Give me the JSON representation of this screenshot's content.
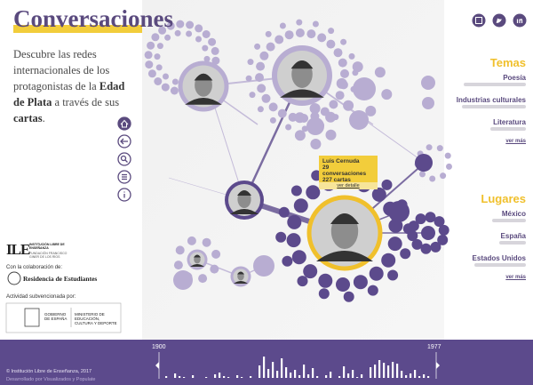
{
  "header": {
    "title": "Conversaciones",
    "description": [
      {
        "text": "Descubre las redes internacionales de los protagonistas de la ",
        "bold": false
      },
      {
        "text": "Edad de Plata",
        "bold": true
      },
      {
        "text": " a través de sus ",
        "bold": false
      },
      {
        "text": "cartas",
        "bold": true
      },
      {
        "text": ".",
        "bold": false
      }
    ]
  },
  "tooltip": {
    "name": "Luis Cernuda",
    "conversations": "29 conversaciones",
    "letters": "227 cartas",
    "link": "ver detalle"
  },
  "themes": {
    "title": "Temas",
    "items": [
      "Poesía",
      "Industrias culturales",
      "Literatura"
    ],
    "more": "ver más"
  },
  "places": {
    "title": "Lugares",
    "items": [
      "México",
      "España",
      "Estados Unidos"
    ],
    "more": "ver más"
  },
  "partners": {
    "ile_mark": "ILE",
    "ile_name": "INSTITUCIÓN LIBRE DE ENSEÑANZA",
    "ile_foundation": "FUNDACIÓN FRANCISCO GINER DE LOS RÍOS",
    "collaboration": "Con la colaboración de:",
    "residencia": "Residencia de Estudiantes",
    "funded": "Actividad subvencionada por:",
    "government": "GOBIERNO DE ESPAÑA",
    "ministry": "MINISTERIO DE EDUCACIÓN, CULTURA Y DEPORTE"
  },
  "footer": {
    "copyright": "© Institución Libre de Enseñanza, 2017",
    "credits": "Desarrollado por Visualizados y Populate",
    "timeline": {
      "start": "1900",
      "end": "1977",
      "counts": [
        2,
        0,
        5,
        2,
        1,
        0,
        3,
        0,
        0,
        1,
        0,
        4,
        6,
        2,
        1,
        0,
        3,
        1,
        0,
        2,
        0,
        14,
        24,
        10,
        18,
        8,
        22,
        12,
        6,
        9,
        3,
        15,
        4,
        11,
        2,
        0,
        3,
        7,
        0,
        2,
        13,
        5,
        9,
        1,
        4,
        0,
        12,
        15,
        20,
        17,
        14,
        18,
        16,
        8,
        3,
        5,
        9,
        2,
        4,
        2
      ]
    }
  }
}
